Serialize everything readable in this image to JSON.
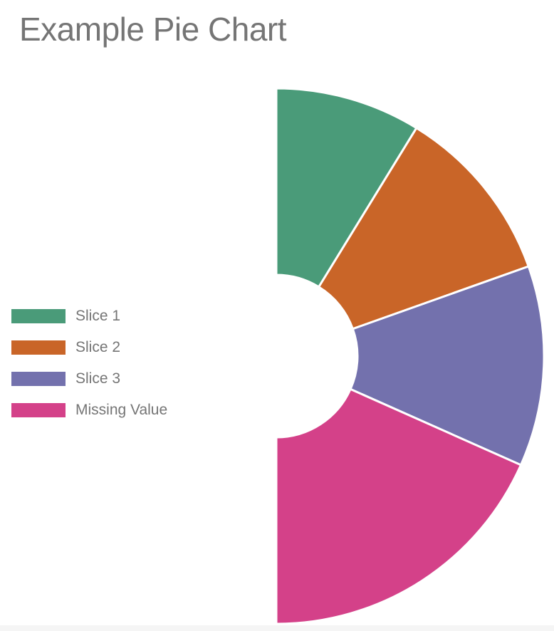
{
  "chart_data": {
    "type": "pie",
    "title": "Example Pie Chart",
    "donut": true,
    "half": "right",
    "legend_position": "left",
    "slices": [
      {
        "label": "Slice 1",
        "value": 1.0,
        "color": "#4a9b79"
      },
      {
        "label": "Slice 2",
        "value": 1.23,
        "color": "#c96528"
      },
      {
        "label": "Slice 3",
        "value": 1.38,
        "color": "#7371ad"
      },
      {
        "label": "Missing Value",
        "value": 2.09,
        "color": "#d44189"
      }
    ]
  }
}
